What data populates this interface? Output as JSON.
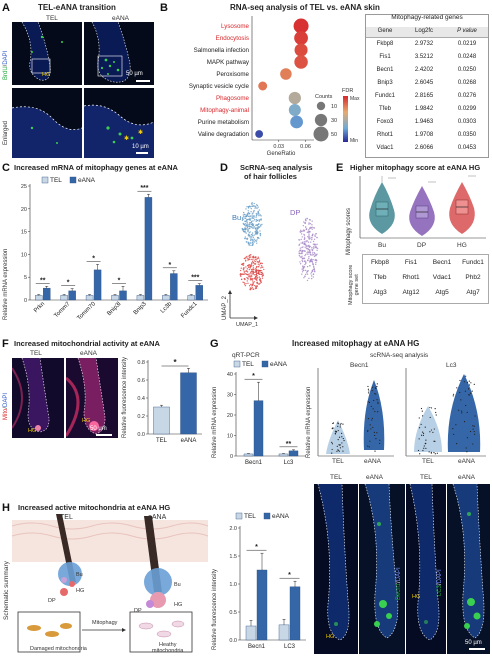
{
  "panelA": {
    "letter": "A",
    "title": "TEL-eANA transition",
    "col_tel": "TEL",
    "col_eana": "eANA",
    "stain_green": "BrdU",
    "stain_sep": "/",
    "stain_blue": "DAPI",
    "row_enlarged": "Enlarged",
    "hg_label": "HG",
    "scale_top": "50 µm",
    "scale_bottom": "10 µm"
  },
  "panelB": {
    "letter": "B",
    "title": "RNA-seq analysis of TEL vs. eANA skin",
    "table_title": "Mitophagy-related genes",
    "headers": [
      "Gene",
      "Log2fc",
      "P value"
    ],
    "rows": [
      [
        "Fkbp8",
        "2.9732",
        "0.0219"
      ],
      [
        "Fis1",
        "3.5212",
        "0.0248"
      ],
      [
        "Becn1",
        "2.4202",
        "0.0250"
      ],
      [
        "Bnip3",
        "2.6045",
        "0.0268"
      ],
      [
        "Fundc1",
        "2.8165",
        "0.0276"
      ],
      [
        "Tfeb",
        "1.9842",
        "0.0299"
      ],
      [
        "Foxo3",
        "1.9463",
        "0.0303"
      ],
      [
        "Rhot1",
        "1.9708",
        "0.0350"
      ],
      [
        "Vdac1",
        "2.6066",
        "0.0453"
      ]
    ],
    "legend_counts": "Counts",
    "legend_fdr": "FDR",
    "legend_max": "Max",
    "legend_min": "Min",
    "legend_count_ticks": [
      "10",
      "30",
      "50"
    ]
  },
  "panelC": {
    "letter": "C",
    "title": "Increased mRNA of mitophagy genes at eANA",
    "legend": [
      "TEL",
      "eANA"
    ]
  },
  "panelD": {
    "letter": "D",
    "title_line1": "ScRNA-seq analysis",
    "title_line2": "of hair follicles",
    "cluster_bu": "Bu",
    "cluster_dp": "DP",
    "cluster_hg": "HG",
    "axis_x": "UMAP_1",
    "axis_y": "UMAP_2"
  },
  "panelE": {
    "letter": "E",
    "title_line1": "Higher mitophagy score",
    "title_line2": "at eANA HG",
    "ylabel": "Mitophagy scores",
    "geneset_label_line1": "Mitophagy score",
    "geneset_label_line2": "gene set",
    "genes": [
      [
        "Fkbp8",
        "Fis1",
        "Becn1",
        "Fundc1"
      ],
      [
        "Tfeb",
        "Rhot1",
        "Vdac1",
        "Phb2"
      ],
      [
        "Atg3",
        "Atg12",
        "Atg5",
        "Atg7"
      ]
    ]
  },
  "panelF": {
    "letter": "F",
    "title": "Increased mitochondrial activity at eANA",
    "col_tel": "TEL",
    "col_eana": "eANA",
    "stain_red": "Mito",
    "stain_sep": "/",
    "stain_blue": "DAPI",
    "hg_label": "HG",
    "scale": "50 µm"
  },
  "panelG": {
    "letter": "G",
    "title": "Increased mitophagy at eANA HG",
    "qpcr_title": "qRT-PCR",
    "sc_title": "scRNA-seq analysis",
    "legend": [
      "TEL",
      "eANA"
    ],
    "violin_becn1": "Becn1",
    "violin_lc3": "Lc3",
    "ylabel_expr_line1": "Relative mRNA expression",
    "ylabel_fluor": "Relative fluorescence intensity",
    "micro_col_tel": "TEL",
    "micro_col_eana": "eANA",
    "stain_becn1": "Becn1",
    "stain_lc3": "LC3",
    "stain_sep": "/",
    "stain_blue": "DAPI",
    "hg_label": "HG",
    "scale": "50 µm"
  },
  "panelH": {
    "letter": "H",
    "title": "Increased active mitochondria at eANA HG",
    "side_label": "Schematic summary",
    "tel": "TEL",
    "eana": "eANA",
    "bu": "Bu",
    "hg": "HG",
    "dp": "DP",
    "arrow_label": "Mitophagy",
    "box_damaged": "Damaged mitochondria",
    "box_healthy_line1": "Heathy",
    "box_healthy_line2": "mitochondria"
  },
  "colors": {
    "tel_bar": "#c8d7e6",
    "eana_bar": "#3567a8",
    "umap_bu": "#6a9fc8",
    "umap_hg": "#e0504e",
    "umap_dp": "#a88bc9",
    "highlight_red": "#d9262a"
  },
  "chart_data": [
    {
      "id": "B-dotplot",
      "type": "scatter",
      "categories": [
        "Lysosome",
        "Endocytosis",
        "Salmonella infection",
        "MAPK pathway",
        "Peroxisome",
        "Synaptic vesicle cycle",
        "Phagosome",
        "Mitophagy-animal",
        "Purine metabolism",
        "Valine degradation"
      ],
      "highlighted": [
        "Lysosome",
        "Endocytosis",
        "Phagosome",
        "Mitophagy-animal"
      ],
      "gene_ratio": [
        0.055,
        0.055,
        0.055,
        0.055,
        0.038,
        0.012,
        0.048,
        0.048,
        0.05,
        0.008
      ],
      "counts": [
        50,
        40,
        35,
        38,
        25,
        12,
        30,
        28,
        33,
        8
      ],
      "fdr_rank": [
        0.98,
        0.95,
        0.92,
        0.9,
        0.8,
        0.82,
        0.55,
        0.4,
        0.3,
        0.1
      ],
      "xlabel": "GeneRatio",
      "xticks": [
        0.03,
        0.06
      ]
    },
    {
      "id": "C-bars",
      "type": "bar",
      "title": "Increased mRNA of mitophagy genes at eANA",
      "ylabel": "Relative mRNA expression",
      "categories": [
        "Prkn",
        "Tomm7",
        "Tomm70",
        "Bnip3l",
        "Bnip3",
        "Lc3b",
        "Fundc1"
      ],
      "ylim": [
        0,
        25
      ],
      "yticks": [
        0,
        5,
        10,
        15,
        20,
        25
      ],
      "series": [
        {
          "name": "TEL",
          "values": [
            1,
            1,
            1,
            1,
            1,
            1,
            1
          ],
          "err": [
            0.2,
            0.2,
            0.2,
            0.2,
            0.2,
            0.2,
            0.2
          ]
        },
        {
          "name": "eANA",
          "values": [
            2.6,
            2.0,
            6.6,
            2.0,
            22.5,
            5.8,
            3.2
          ],
          "err": [
            0.4,
            0.5,
            1.2,
            1.0,
            0.7,
            0.6,
            0.4
          ]
        }
      ],
      "significance": [
        "**",
        "*",
        "*",
        "*",
        "***",
        "*",
        "***"
      ]
    },
    {
      "id": "F-bars",
      "type": "bar",
      "ylabel": "Relative fluorescence intensity",
      "categories": [
        "TEL",
        "eANA"
      ],
      "values": [
        0.3,
        0.68
      ],
      "err": [
        0.02,
        0.05
      ],
      "ylim": [
        0,
        0.8
      ],
      "yticks": [
        0.0,
        0.2,
        0.4,
        0.6,
        0.8
      ],
      "significance": "*"
    },
    {
      "id": "G-qpcr",
      "type": "bar",
      "ylabel": "Relative mRNA expression",
      "categories": [
        "Becn1",
        "Lc3"
      ],
      "ylim": [
        0,
        40
      ],
      "yticks": [
        0,
        10,
        20,
        30,
        40
      ],
      "series": [
        {
          "name": "TEL",
          "values": [
            1,
            1
          ],
          "err": [
            0.2,
            0.2
          ]
        },
        {
          "name": "eANA",
          "values": [
            27,
            2.5
          ],
          "err": [
            9,
            0.5
          ]
        }
      ],
      "significance": [
        "*",
        "**"
      ]
    },
    {
      "id": "G-fluor",
      "type": "bar",
      "ylabel": "Relative fluorescence intensity",
      "categories": [
        "Becn1",
        "LC3"
      ],
      "ylim": [
        0,
        2.0
      ],
      "yticks": [
        0.0,
        0.5,
        1.0,
        1.5,
        2.0
      ],
      "series": [
        {
          "name": "TEL",
          "values": [
            0.25,
            0.27
          ],
          "err": [
            0.1,
            0.1
          ]
        },
        {
          "name": "eANA",
          "values": [
            1.25,
            0.95
          ],
          "err": [
            0.3,
            0.1
          ]
        }
      ],
      "significance": [
        "*",
        "*"
      ]
    }
  ]
}
